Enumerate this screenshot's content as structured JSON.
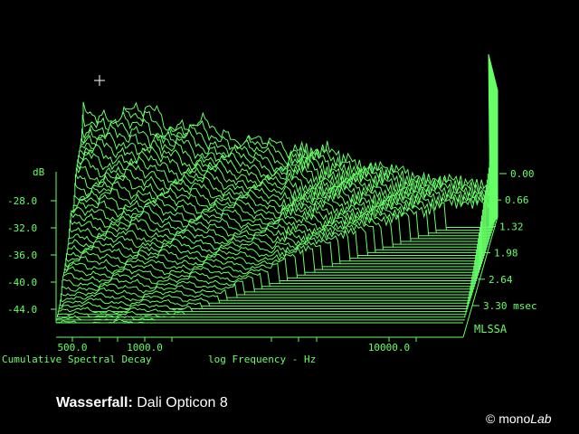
{
  "footer": {
    "label": "Wasserfall:",
    "product": "Dali Opticon 8",
    "copyright": "© mono",
    "copyright_italic": "Lab"
  },
  "colors": {
    "accent": "#66ff66",
    "background": "#000000",
    "text": "#ffffff"
  },
  "chart_data": {
    "type": "waterfall",
    "title": "Cumulative Spectral Decay",
    "xlabel": "log Frequency - Hz",
    "ylabel": "dB",
    "zlabel": "msec",
    "brand": "MLSSA",
    "x_scale": "log",
    "x_ticks": [
      "500.0",
      "1000.0",
      "10000.0"
    ],
    "y_ticks": [
      "-28.0",
      "-32.0",
      "-36.0",
      "-40.0",
      "-44.0"
    ],
    "time_ticks": [
      "0.00",
      "0.66",
      "1.32",
      "1.98",
      "2.64",
      "3.30 msec"
    ],
    "ylim": [
      -47,
      -22
    ],
    "time_range": [
      0.0,
      3.3
    ],
    "slice_count": 40
  }
}
